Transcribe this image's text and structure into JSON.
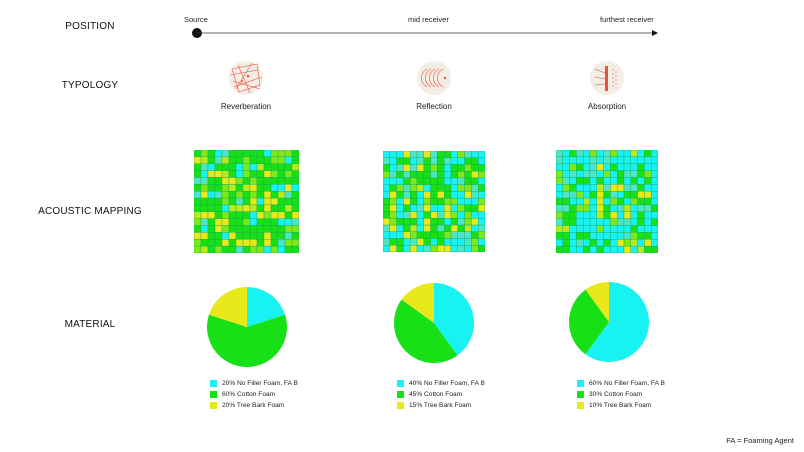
{
  "rows": {
    "position": "POSITION",
    "typology": "TYPOLOGY",
    "mapping": "ACOUSTIC MAPPING",
    "material": "MATERIAL"
  },
  "position_axis": {
    "start": "Source",
    "mid": "mid receiver",
    "end": "furthest receiver"
  },
  "typologies": [
    {
      "label": "Reverberation",
      "icon": "reverberation-icon"
    },
    {
      "label": "Reflection",
      "icon": "reflection-icon"
    },
    {
      "label": "Absorption",
      "icon": "absorption-icon"
    }
  ],
  "colors": {
    "cyan": "#19f2f2",
    "green": "#17e017",
    "yellow": "#e8e81a",
    "accent": "#e8553a"
  },
  "chart_data": [
    {
      "type": "pie",
      "labels": [
        "20% No Filler Foam, FA B",
        "60% Cotton Foam",
        "20% Tree Bark Foam"
      ],
      "values": [
        20,
        60,
        20
      ],
      "colors": [
        "#19f2f2",
        "#17e017",
        "#e8e81a"
      ]
    },
    {
      "type": "pie",
      "labels": [
        "40% No Filler Foam, FA B",
        "45% Cotton Foam",
        "15% Tree Bark Foam"
      ],
      "values": [
        40,
        45,
        15
      ],
      "colors": [
        "#19f2f2",
        "#17e017",
        "#e8e81a"
      ]
    },
    {
      "type": "pie",
      "labels": [
        "60% No Filler Foam, FA B",
        "30% Cotton Foam",
        "10% Tree Bark Foam"
      ],
      "values": [
        60,
        30,
        10
      ],
      "colors": [
        "#19f2f2",
        "#17e017",
        "#e8e81a"
      ]
    },
    {
      "type": "heatmap",
      "mix": [
        20,
        60,
        20
      ],
      "rows": 15,
      "cols": 15
    },
    {
      "type": "heatmap",
      "mix": [
        40,
        45,
        15
      ],
      "rows": 15,
      "cols": 15
    },
    {
      "type": "heatmap",
      "mix": [
        60,
        30,
        10
      ],
      "rows": 15,
      "cols": 15
    }
  ],
  "footnote": "FA = Foaming Agent"
}
